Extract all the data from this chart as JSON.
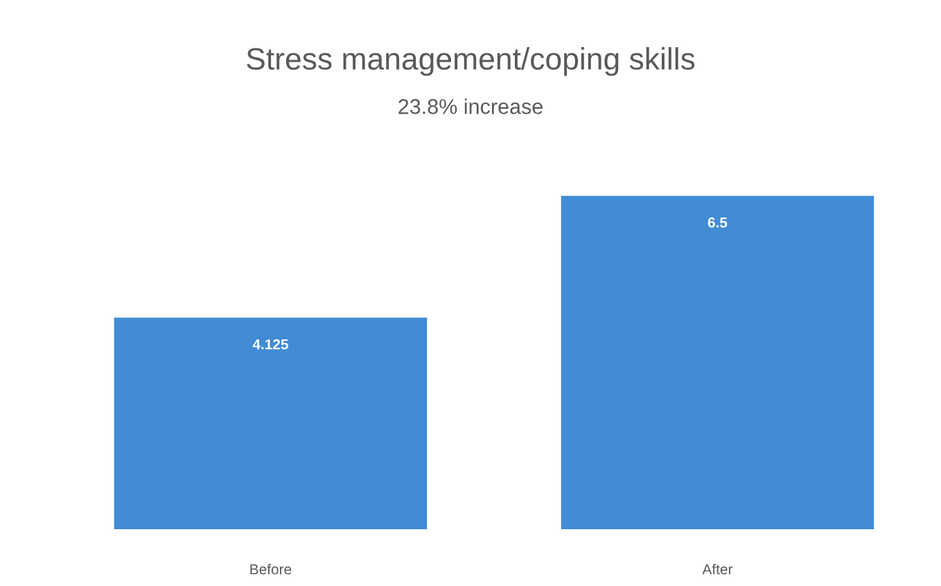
{
  "chart_data": {
    "type": "bar",
    "title": "Stress management/coping skills",
    "subtitle": "23.8% increase",
    "categories": [
      "Before",
      "After"
    ],
    "values": [
      4.125,
      6.5
    ],
    "color": "#428bd5",
    "data_labels": true
  }
}
